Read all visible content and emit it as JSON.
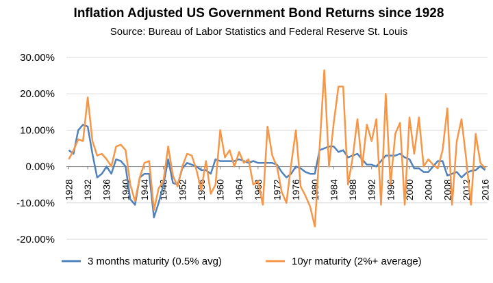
{
  "chart_data": {
    "type": "line",
    "title": "Inflation Adjusted US Government Bond Returns since 1928",
    "subtitle": "Source: Bureau of Labor Statistics and Federal Reserve St. Louis",
    "xlabel": "",
    "ylabel": "",
    "ylim": [
      -0.2,
      0.3
    ],
    "y_ticks": [
      "30.00%",
      "20.00%",
      "10.00%",
      "0.00%",
      "-10.00%",
      "-20.00%"
    ],
    "y_tick_values": [
      0.3,
      0.2,
      0.1,
      0.0,
      -0.1,
      -0.2
    ],
    "x_ticks": [
      "1928",
      "1932",
      "1936",
      "1940",
      "1944",
      "1948",
      "1952",
      "1956",
      "1960",
      "1964",
      "1968",
      "1972",
      "1976",
      "1980",
      "1984",
      "1988",
      "1992",
      "1996",
      "2000",
      "2004",
      "2008",
      "2012",
      "2016"
    ],
    "grid": true,
    "legend_position": "bottom",
    "colors": {
      "series_1": "#4f81bd",
      "series_2": "#f79646",
      "grid": "#d9d9d9",
      "axis": "#808080"
    },
    "years": [
      1928,
      1929,
      1930,
      1931,
      1932,
      1933,
      1934,
      1935,
      1936,
      1937,
      1938,
      1939,
      1940,
      1941,
      1942,
      1943,
      1944,
      1945,
      1946,
      1947,
      1948,
      1949,
      1950,
      1951,
      1952,
      1953,
      1954,
      1955,
      1956,
      1957,
      1958,
      1959,
      1960,
      1961,
      1962,
      1963,
      1964,
      1965,
      1966,
      1967,
      1968,
      1969,
      1970,
      1971,
      1972,
      1973,
      1974,
      1975,
      1976,
      1977,
      1978,
      1979,
      1980,
      1981,
      1982,
      1983,
      1984,
      1985,
      1986,
      1987,
      1988,
      1989,
      1990,
      1991,
      1992,
      1993,
      1994,
      1995,
      1996,
      1997,
      1998,
      1999,
      2000,
      2001,
      2002,
      2003,
      2004,
      2005,
      2006,
      2007,
      2008,
      2009,
      2010,
      2011,
      2012,
      2013,
      2014,
      2015,
      2016
    ],
    "series": [
      {
        "name": "3 months maturity (0.5% avg)",
        "values": [
          0.045,
          0.035,
          0.1,
          0.115,
          0.11,
          0.035,
          -0.03,
          -0.02,
          0.0,
          -0.02,
          0.02,
          0.015,
          0.0,
          -0.09,
          -0.105,
          -0.03,
          -0.02,
          -0.02,
          -0.14,
          -0.1,
          -0.05,
          0.02,
          -0.045,
          -0.05,
          -0.005,
          0.01,
          0.005,
          0.0,
          -0.01,
          -0.01,
          -0.02,
          0.02,
          0.015,
          0.015,
          0.015,
          0.015,
          0.02,
          0.015,
          0.01,
          0.015,
          0.01,
          0.01,
          0.01,
          0.01,
          0.005,
          -0.015,
          -0.03,
          -0.02,
          0.0,
          -0.005,
          -0.015,
          -0.02,
          -0.02,
          0.045,
          0.05,
          0.055,
          0.055,
          0.04,
          0.045,
          0.025,
          0.03,
          0.035,
          0.02,
          0.005,
          0.005,
          0.0,
          0.015,
          0.03,
          0.03,
          0.03,
          0.035,
          0.025,
          0.02,
          -0.005,
          -0.005,
          -0.015,
          -0.015,
          0.0,
          0.015,
          0.015,
          -0.025,
          -0.02,
          -0.015,
          -0.03,
          -0.018,
          -0.012,
          -0.01,
          0.001,
          -0.01
        ]
      },
      {
        "name": "10yr maturity (2%+ average)",
        "values": [
          0.02,
          0.045,
          0.075,
          0.07,
          0.19,
          0.07,
          0.03,
          0.035,
          0.02,
          0.0,
          0.055,
          0.06,
          0.045,
          -0.05,
          -0.095,
          -0.03,
          0.01,
          0.015,
          -0.12,
          -0.06,
          -0.04,
          0.055,
          -0.025,
          -0.055,
          0.0,
          0.035,
          0.03,
          -0.01,
          -0.065,
          0.015,
          -0.075,
          -0.05,
          0.1,
          0.025,
          0.045,
          0.0,
          0.04,
          0.01,
          0.02,
          -0.05,
          -0.04,
          -0.105,
          0.11,
          0.03,
          0.0,
          -0.07,
          -0.1,
          0.005,
          0.1,
          -0.055,
          -0.08,
          -0.11,
          -0.165,
          0.05,
          0.265,
          0.0,
          0.12,
          0.22,
          0.22,
          -0.05,
          0.025,
          0.13,
          0.0,
          0.115,
          0.07,
          0.13,
          -0.105,
          0.2,
          -0.05,
          0.09,
          0.12,
          -0.105,
          0.135,
          0.035,
          0.135,
          0.0,
          0.02,
          0.005,
          -0.005,
          0.045,
          0.16,
          -0.105,
          0.07,
          0.13,
          0.02,
          -0.105,
          0.09,
          0.01,
          -0.005
        ]
      }
    ]
  }
}
